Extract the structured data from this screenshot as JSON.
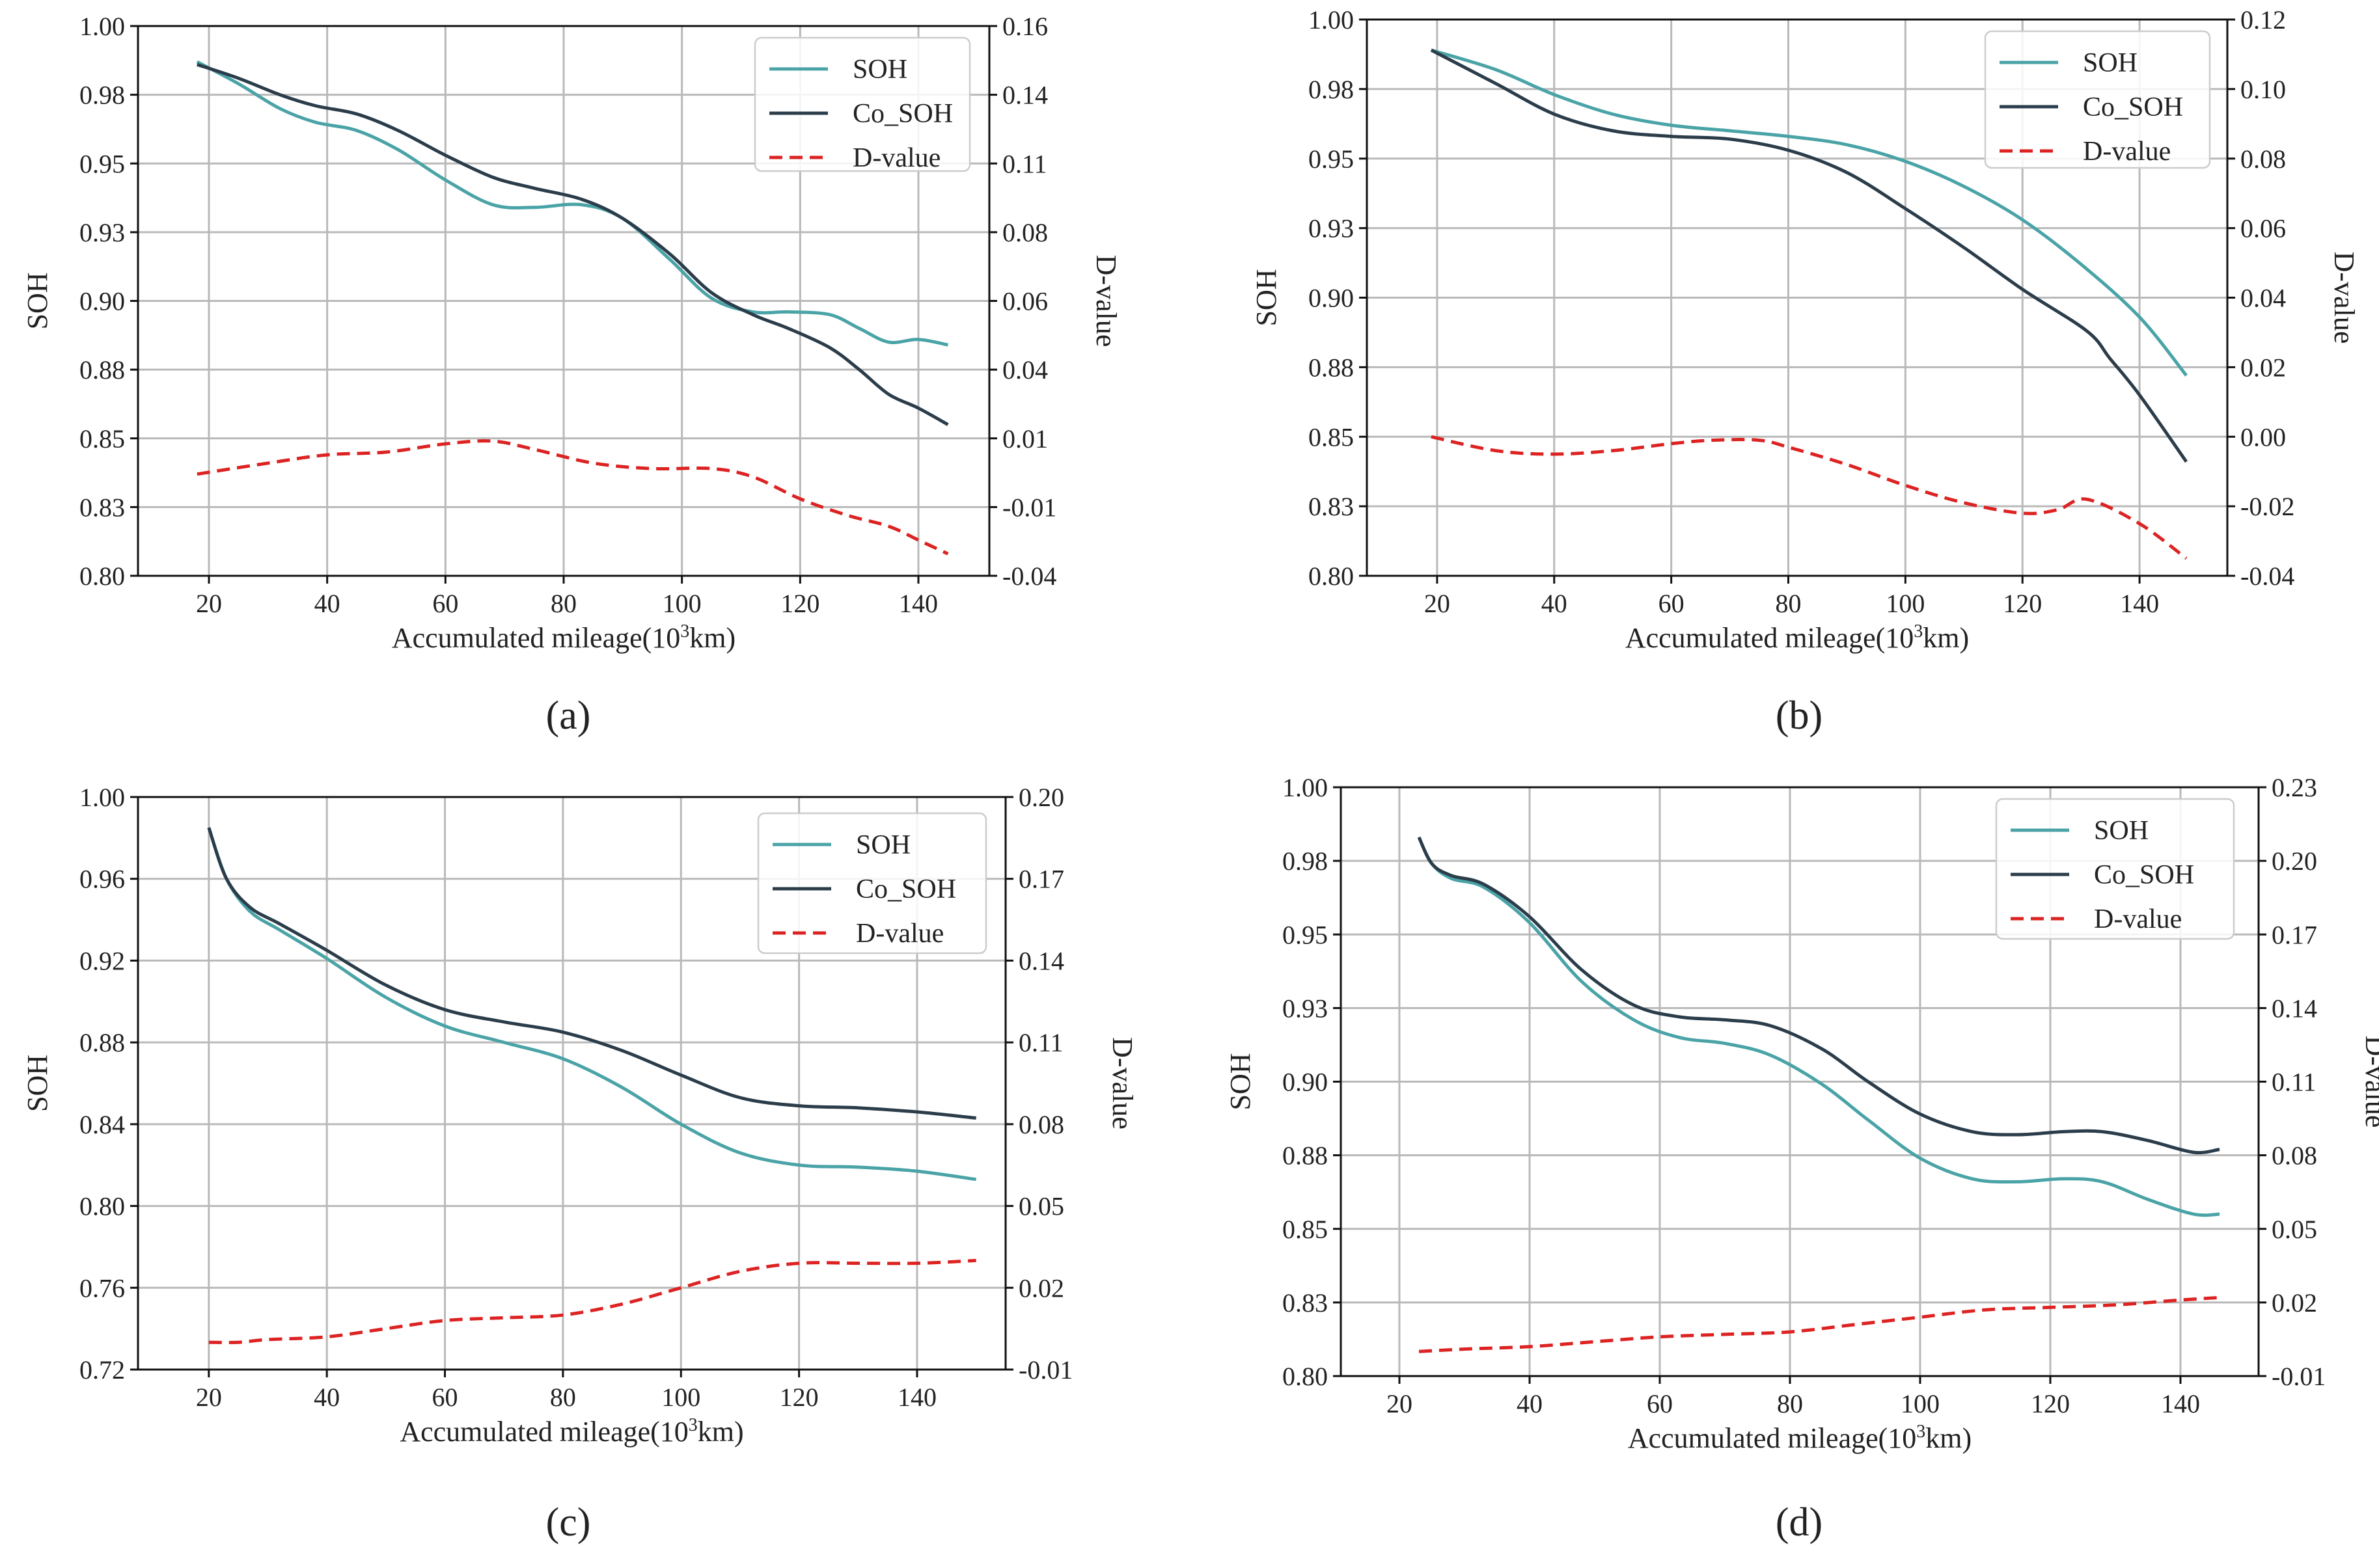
{
  "colors": {
    "soh": "#4aa3a6",
    "co_soh": "#2b3d4a",
    "dvalue": "#dd2222",
    "grid": "#b9b9b9"
  },
  "chart_data": [
    {
      "type": "line",
      "panel_label": "(a)",
      "xlabel_prefix": "Accumulated mileage(10",
      "xlabel_sup": "3",
      "xlabel_suffix": "km)",
      "ylabel": "SOH",
      "y2label": "D-value",
      "xlim": [
        8,
        152
      ],
      "ylim": [
        0.8,
        1.0
      ],
      "y2lim": [
        -0.04,
        0.16
      ],
      "xticks": [
        20,
        40,
        60,
        80,
        100,
        120,
        140
      ],
      "xtick_labels": [
        "20",
        "40",
        "60",
        "80",
        "100",
        "120",
        "140"
      ],
      "yticks": [
        0.8,
        0.825,
        0.85,
        0.875,
        0.9,
        0.925,
        0.95,
        0.975,
        1.0
      ],
      "ytick_labels": [
        "0.80",
        "0.83",
        "0.85",
        "0.88",
        "0.90",
        "0.93",
        "0.95",
        "0.98",
        "1.00"
      ],
      "y2ticks": [
        -0.04,
        -0.015,
        0.01,
        0.035,
        0.06,
        0.085,
        0.11,
        0.135,
        0.16
      ],
      "y2tick_labels": [
        "-0.04",
        "-0.01",
        "0.01",
        "0.04",
        "0.06",
        "0.08",
        "0.11",
        "0.14",
        "0.16"
      ],
      "legend_position": "top-right",
      "series": [
        {
          "name": "SOH",
          "axis": "left",
          "style": "solid",
          "x": [
            18,
            25,
            32,
            38,
            45,
            52,
            60,
            68,
            75,
            83,
            90,
            98,
            105,
            112,
            118,
            125,
            130,
            135,
            140,
            145
          ],
          "y": [
            0.987,
            0.979,
            0.97,
            0.965,
            0.962,
            0.955,
            0.944,
            0.935,
            0.934,
            0.935,
            0.93,
            0.915,
            0.901,
            0.896,
            0.896,
            0.895,
            0.89,
            0.885,
            0.886,
            0.884
          ]
        },
        {
          "name": "Co_SOH",
          "axis": "left",
          "style": "solid",
          "x": [
            18,
            25,
            32,
            38,
            45,
            52,
            60,
            68,
            75,
            83,
            90,
            98,
            105,
            112,
            118,
            125,
            130,
            135,
            140,
            145
          ],
          "y": [
            0.986,
            0.981,
            0.975,
            0.971,
            0.968,
            0.962,
            0.953,
            0.945,
            0.941,
            0.937,
            0.93,
            0.917,
            0.903,
            0.895,
            0.89,
            0.883,
            0.875,
            0.866,
            0.861,
            0.855
          ]
        },
        {
          "name": "D-value",
          "axis": "right",
          "style": "dashed",
          "x": [
            18,
            30,
            40,
            50,
            60,
            68,
            75,
            85,
            95,
            105,
            112,
            120,
            128,
            135,
            140,
            145
          ],
          "y": [
            -0.003,
            0.001,
            0.004,
            0.005,
            0.008,
            0.009,
            0.006,
            0.001,
            -0.001,
            -0.001,
            -0.004,
            -0.012,
            -0.018,
            -0.022,
            -0.027,
            -0.032
          ]
        }
      ]
    },
    {
      "type": "line",
      "panel_label": "(b)",
      "xlabel_prefix": "Accumulated mileage(10",
      "xlabel_sup": "3",
      "xlabel_suffix": "km)",
      "ylabel": "SOH",
      "y2label": "D-value",
      "xlim": [
        8,
        155
      ],
      "ylim": [
        0.8,
        1.0
      ],
      "y2lim": [
        -0.04,
        0.12
      ],
      "xticks": [
        20,
        40,
        60,
        80,
        100,
        120,
        140
      ],
      "xtick_labels": [
        "20",
        "40",
        "60",
        "80",
        "100",
        "120",
        "140"
      ],
      "yticks": [
        0.8,
        0.825,
        0.85,
        0.875,
        0.9,
        0.925,
        0.95,
        0.975,
        1.0
      ],
      "ytick_labels": [
        "0.80",
        "0.83",
        "0.85",
        "0.88",
        "0.90",
        "0.93",
        "0.95",
        "0.98",
        "1.00"
      ],
      "y2ticks": [
        -0.04,
        -0.02,
        0.0,
        0.02,
        0.04,
        0.06,
        0.08,
        0.1,
        0.12
      ],
      "y2tick_labels": [
        "-0.04",
        "-0.02",
        "0.00",
        "0.02",
        "0.04",
        "0.06",
        "0.08",
        "0.10",
        "0.12"
      ],
      "legend_position": "top-right",
      "series": [
        {
          "name": "SOH",
          "axis": "left",
          "style": "solid",
          "x": [
            19,
            30,
            40,
            50,
            60,
            70,
            80,
            90,
            100,
            110,
            120,
            130,
            140,
            148
          ],
          "y": [
            0.989,
            0.982,
            0.973,
            0.966,
            0.962,
            0.96,
            0.958,
            0.955,
            0.949,
            0.94,
            0.928,
            0.912,
            0.893,
            0.872
          ]
        },
        {
          "name": "Co_SOH",
          "axis": "left",
          "style": "solid",
          "x": [
            19,
            30,
            40,
            50,
            60,
            70,
            80,
            90,
            100,
            110,
            120,
            131,
            135,
            140,
            148
          ],
          "y": [
            0.989,
            0.977,
            0.966,
            0.96,
            0.958,
            0.957,
            0.953,
            0.945,
            0.932,
            0.918,
            0.903,
            0.888,
            0.878,
            0.865,
            0.841
          ]
        },
        {
          "name": "D-value",
          "axis": "right",
          "style": "dashed",
          "x": [
            19,
            30,
            40,
            50,
            60,
            67,
            75,
            80,
            90,
            100,
            110,
            120,
            126,
            131,
            140,
            148
          ],
          "y": [
            0.0,
            -0.004,
            -0.005,
            -0.004,
            -0.002,
            -0.001,
            -0.001,
            -0.003,
            -0.008,
            -0.014,
            -0.019,
            -0.022,
            -0.021,
            -0.018,
            -0.025,
            -0.035
          ]
        }
      ]
    },
    {
      "type": "line",
      "panel_label": "(c)",
      "xlabel_prefix": "Accumulated mileage(10",
      "xlabel_sup": "3",
      "xlabel_suffix": "km)",
      "ylabel": "SOH",
      "y2label": "D-value",
      "xlim": [
        8,
        155
      ],
      "ylim": [
        0.72,
        1.0
      ],
      "y2lim": [
        -0.01,
        0.2
      ],
      "xticks": [
        20,
        40,
        60,
        80,
        100,
        120,
        140
      ],
      "xtick_labels": [
        "20",
        "40",
        "60",
        "80",
        "100",
        "120",
        "140"
      ],
      "yticks": [
        0.72,
        0.76,
        0.8,
        0.84,
        0.88,
        0.92,
        0.96,
        1.0
      ],
      "ytick_labels": [
        "0.72",
        "0.76",
        "0.80",
        "0.84",
        "0.88",
        "0.92",
        "0.96",
        "1.00"
      ],
      "y2ticks": [
        -0.01,
        0.02,
        0.05,
        0.08,
        0.11,
        0.14,
        0.17,
        0.2
      ],
      "y2tick_labels": [
        "-0.01",
        "0.02",
        "0.05",
        "0.08",
        "0.11",
        "0.14",
        "0.17",
        "0.20"
      ],
      "legend_position": "top-right",
      "series": [
        {
          "name": "SOH",
          "axis": "left",
          "style": "solid",
          "x": [
            20,
            23,
            27,
            32,
            40,
            50,
            60,
            70,
            80,
            90,
            100,
            110,
            120,
            130,
            140,
            150
          ],
          "y": [
            0.985,
            0.96,
            0.944,
            0.935,
            0.921,
            0.902,
            0.888,
            0.88,
            0.872,
            0.858,
            0.84,
            0.826,
            0.82,
            0.819,
            0.817,
            0.813
          ]
        },
        {
          "name": "Co_SOH",
          "axis": "left",
          "style": "solid",
          "x": [
            20,
            23,
            27,
            32,
            40,
            50,
            60,
            70,
            80,
            90,
            100,
            110,
            120,
            130,
            140,
            150
          ],
          "y": [
            0.985,
            0.96,
            0.946,
            0.938,
            0.925,
            0.908,
            0.896,
            0.89,
            0.885,
            0.876,
            0.864,
            0.853,
            0.849,
            0.848,
            0.846,
            0.843
          ]
        },
        {
          "name": "D-value",
          "axis": "right",
          "style": "dashed",
          "x": [
            20,
            25,
            30,
            40,
            50,
            60,
            70,
            80,
            90,
            100,
            110,
            120,
            130,
            140,
            150
          ],
          "y": [
            0.0,
            0.0,
            0.001,
            0.002,
            0.005,
            0.008,
            0.009,
            0.01,
            0.014,
            0.02,
            0.026,
            0.029,
            0.029,
            0.029,
            0.03
          ]
        }
      ]
    },
    {
      "type": "line",
      "panel_label": "(d)",
      "xlabel_prefix": "Accumulated mileage(10",
      "xlabel_sup": "3",
      "xlabel_suffix": "km)",
      "ylabel": "SOH",
      "y2label": "D-value",
      "xlim": [
        11,
        152
      ],
      "ylim": [
        0.8,
        1.0
      ],
      "y2lim": [
        -0.01,
        0.23
      ],
      "xticks": [
        20,
        40,
        60,
        80,
        100,
        120,
        140
      ],
      "xtick_labels": [
        "20",
        "40",
        "60",
        "80",
        "100",
        "120",
        "140"
      ],
      "yticks": [
        0.8,
        0.825,
        0.85,
        0.875,
        0.9,
        0.925,
        0.95,
        0.975,
        1.0
      ],
      "ytick_labels": [
        "0.80",
        "0.83",
        "0.85",
        "0.88",
        "0.90",
        "0.93",
        "0.95",
        "0.98",
        "1.00"
      ],
      "y2ticks": [
        -0.01,
        0.02,
        0.05,
        0.08,
        0.11,
        0.14,
        0.17,
        0.2,
        0.23
      ],
      "y2tick_labels": [
        "-0.01",
        "0.02",
        "0.05",
        "0.08",
        "0.11",
        "0.14",
        "0.17",
        "0.20",
        "0.23"
      ],
      "legend_position": "top-right",
      "series": [
        {
          "name": "SOH",
          "axis": "left",
          "style": "solid",
          "x": [
            23,
            25,
            28,
            33,
            40,
            48,
            56,
            63,
            70,
            77,
            85,
            92,
            100,
            108,
            115,
            122,
            128,
            135,
            142,
            146
          ],
          "y": [
            0.983,
            0.974,
            0.969,
            0.966,
            0.954,
            0.934,
            0.921,
            0.915,
            0.913,
            0.909,
            0.899,
            0.887,
            0.874,
            0.867,
            0.866,
            0.867,
            0.866,
            0.86,
            0.855,
            0.855
          ]
        },
        {
          "name": "Co_SOH",
          "axis": "left",
          "style": "solid",
          "x": [
            23,
            25,
            28,
            33,
            40,
            48,
            56,
            63,
            70,
            77,
            85,
            92,
            100,
            108,
            115,
            122,
            128,
            135,
            142,
            146
          ],
          "y": [
            0.983,
            0.974,
            0.97,
            0.967,
            0.956,
            0.938,
            0.926,
            0.922,
            0.921,
            0.919,
            0.911,
            0.9,
            0.889,
            0.883,
            0.882,
            0.883,
            0.883,
            0.88,
            0.876,
            0.877
          ]
        },
        {
          "name": "D-value",
          "axis": "right",
          "style": "dashed",
          "x": [
            23,
            30,
            40,
            50,
            60,
            70,
            80,
            90,
            100,
            110,
            120,
            130,
            140,
            146
          ],
          "y": [
            0.0,
            0.001,
            0.002,
            0.004,
            0.006,
            0.007,
            0.008,
            0.011,
            0.014,
            0.017,
            0.018,
            0.019,
            0.021,
            0.022
          ]
        }
      ]
    }
  ]
}
